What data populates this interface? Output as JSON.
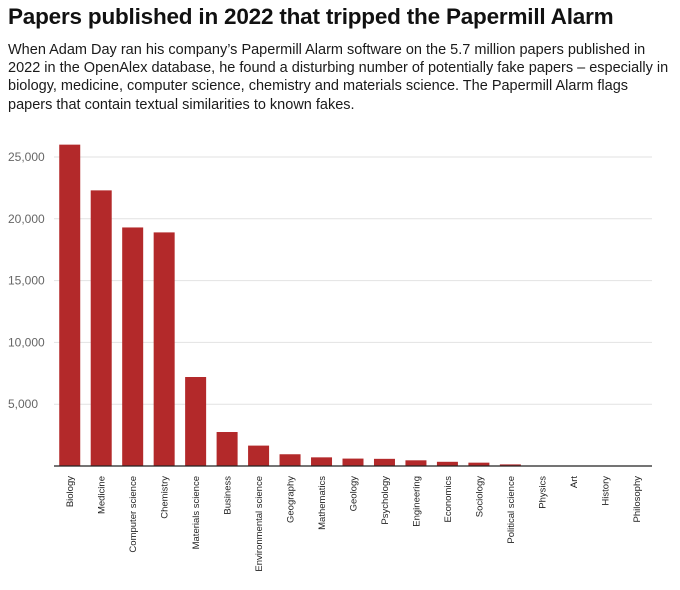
{
  "title": "Papers published in 2022 that tripped the Papermill Alarm",
  "subtitle": "When Adam Day ran his company’s Papermill Alarm software on the 5.7 million papers published in 2022 in the OpenAlex database, he found a disturbing number of potentially fake papers  – especially in biology, medicine, computer science, chemistry and materials science. The Papermill Alarm flags papers that contain textual similarities to known fakes.",
  "colors": {
    "bar": "#b3292a"
  },
  "chart_data": {
    "type": "bar",
    "categories": [
      "Biology",
      "Medicine",
      "Computer science",
      "Chemistry",
      "Materials science",
      "Business",
      "Environmental science",
      "Geography",
      "Mathematics",
      "Geology",
      "Psychology",
      "Engineering",
      "Economics",
      "Sociology",
      "Political science",
      "Physics",
      "Art",
      "History",
      "Philosophy"
    ],
    "values": [
      26000,
      22300,
      19300,
      18900,
      7200,
      2750,
      1650,
      950,
      700,
      600,
      580,
      460,
      340,
      270,
      130,
      30,
      15,
      10,
      5
    ],
    "yticks": [
      5000,
      10000,
      15000,
      20000,
      25000
    ],
    "ytick_labels": [
      "5,000",
      "10,000",
      "15,000",
      "20,000",
      "25,000"
    ],
    "ylim": [
      0,
      28000
    ],
    "xlabel": "",
    "ylabel": "",
    "grid": true
  }
}
